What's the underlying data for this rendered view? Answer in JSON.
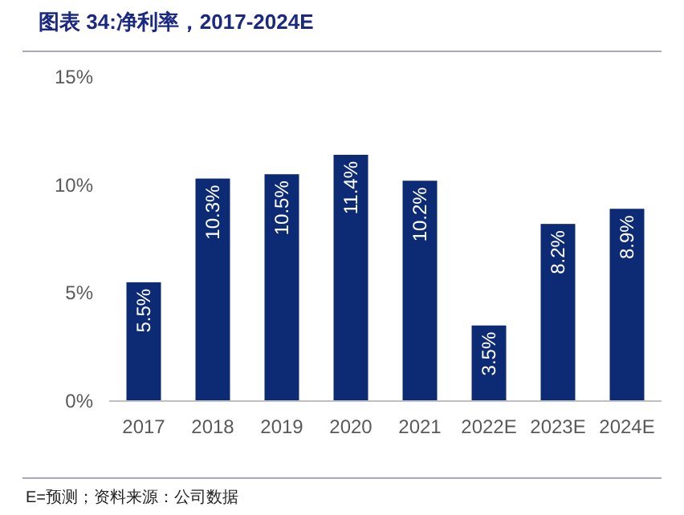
{
  "chart_data": {
    "type": "bar",
    "title": "图表 34:净利率，2017-2024E",
    "categories": [
      "2017",
      "2018",
      "2019",
      "2020",
      "2021",
      "2022E",
      "2023E",
      "2024E"
    ],
    "values": [
      5.5,
      10.3,
      10.5,
      11.4,
      10.2,
      3.5,
      8.2,
      8.9
    ],
    "color": "#0d2a75",
    "value_labels": [
      "5.5%",
      "10.3%",
      "10.5%",
      "11.4%",
      "10.2%",
      "3.5%",
      "8.2%",
      "8.9%"
    ],
    "ylim": [
      0,
      15
    ],
    "yticks": [
      {
        "value": 0,
        "label": "0%"
      },
      {
        "value": 5,
        "label": "5%"
      },
      {
        "value": 10,
        "label": "10%"
      },
      {
        "value": 15,
        "label": "15%"
      }
    ],
    "grid": false,
    "annotations": [
      "E=预测；资料来源：公司数据"
    ]
  }
}
